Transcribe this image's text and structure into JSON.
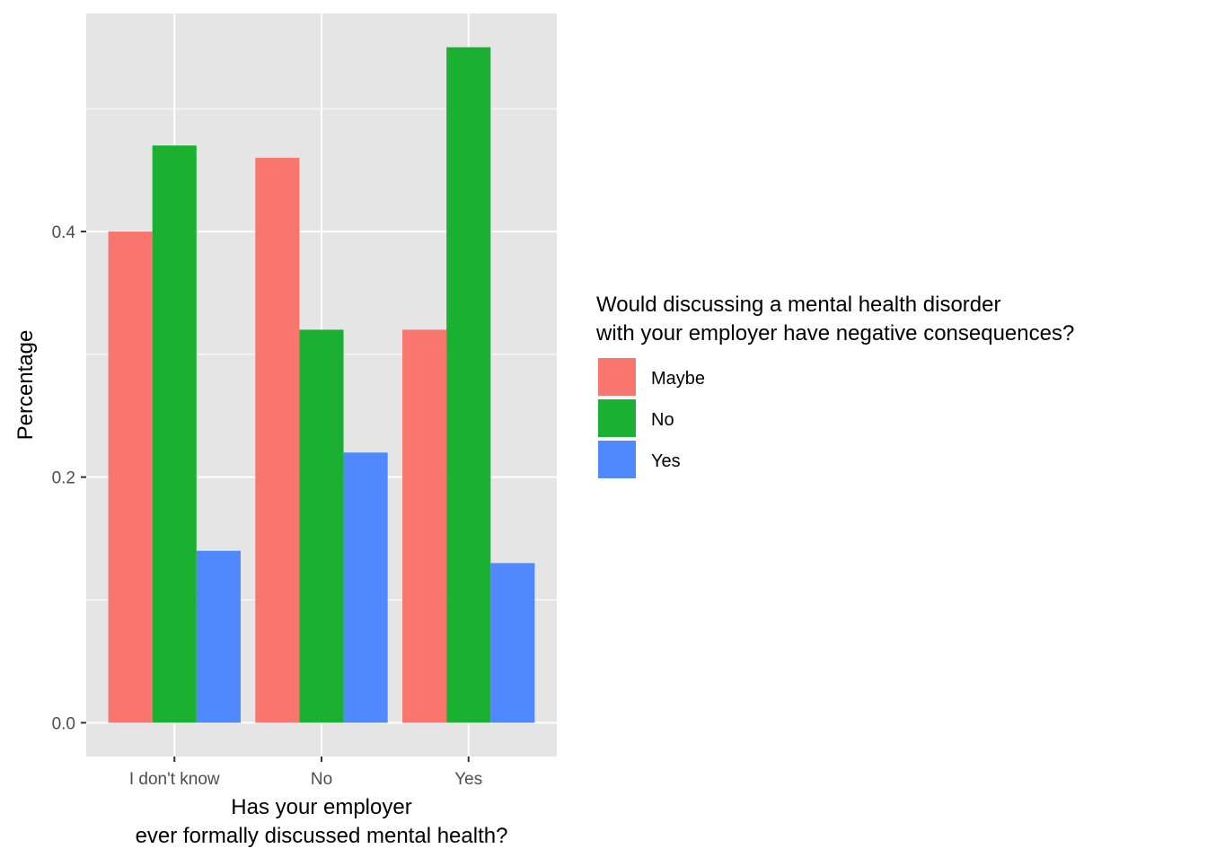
{
  "chart_data": {
    "type": "bar",
    "title": "",
    "xlabel_lines": [
      "Has your employer",
      "ever formally discussed mental health?"
    ],
    "ylabel": "Percentage",
    "categories": [
      "I don't know",
      "No",
      "Yes"
    ],
    "series": [
      {
        "name": "Maybe",
        "color": "#F8766D",
        "values": [
          0.4,
          0.46,
          0.32
        ]
      },
      {
        "name": "No",
        "color": "#1CB032",
        "values": [
          0.47,
          0.32,
          0.55
        ]
      },
      {
        "name": "Yes",
        "color": "#5088FF",
        "values": [
          0.14,
          0.22,
          0.13
        ]
      }
    ],
    "ylim": [
      -0.0275,
      0.5775
    ],
    "yticks": [
      0.0,
      0.2,
      0.4
    ],
    "ytick_labels": [
      "0.0",
      "0.2",
      "0.4"
    ],
    "yminor": [
      0.1,
      0.3,
      0.5
    ],
    "grid": true,
    "legend": {
      "title_lines": [
        "Would discussing a mental health disorder",
        "with your employer have negative consequences?"
      ],
      "placement": "right"
    }
  }
}
